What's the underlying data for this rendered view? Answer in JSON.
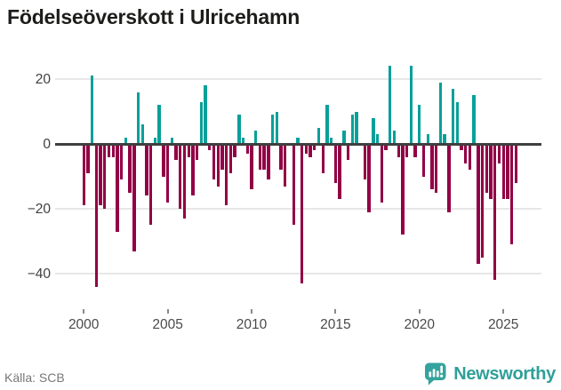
{
  "title": "Födelseöverskott i Ulricehamn",
  "source": "Källa: SCB",
  "branding": {
    "name": "Newsworthy",
    "logo_icon": "speech-bubble-bar-chart"
  },
  "colors": {
    "positive": "#07a099",
    "negative": "#920045",
    "zero_line": "#3f3f3f",
    "gridline": "#e7e7e7",
    "brand_teal": "#2f9f99"
  },
  "chart_data": {
    "type": "bar",
    "title": "Födelseöverskott i Ulricehamn",
    "xlabel": "",
    "ylabel": "",
    "frequency": "quarterly",
    "start_year": 2000,
    "end_year": 2025,
    "y_tick_labels": [
      "20",
      "0",
      "−20",
      "−40"
    ],
    "y_tick_values": [
      20,
      0,
      -20,
      -40
    ],
    "x_tick_years": [
      2000,
      2005,
      2010,
      2015,
      2020,
      2025
    ],
    "ylim": [
      -46,
      25
    ],
    "grid": true,
    "legend": "none",
    "values": [
      -19,
      -9,
      21,
      -44,
      -19,
      -20,
      -4,
      -4,
      -27,
      -11,
      2,
      -15,
      -33,
      16,
      6,
      -16,
      -25,
      2,
      12,
      -10,
      -18,
      2,
      -5,
      -20,
      -23,
      -4,
      -16,
      -5,
      13,
      18,
      -2,
      -11,
      -13,
      -8,
      -19,
      -9,
      -4,
      9,
      2,
      -3,
      -14,
      4,
      -8,
      -8,
      -11,
      9,
      10,
      -8,
      -13,
      0,
      -25,
      2,
      -43,
      -3,
      -4,
      -2,
      5,
      -9,
      12,
      2,
      -12,
      -17,
      4,
      -5,
      9,
      10,
      0,
      -11,
      -21,
      8,
      3,
      -18,
      -2,
      24,
      4,
      -4,
      -28,
      -4,
      24,
      -4,
      12,
      -10,
      3,
      -14,
      -15,
      19,
      3,
      -21,
      17,
      13,
      -2,
      -6,
      -8,
      15,
      -37,
      -35,
      -15,
      -17,
      -42,
      -6,
      -17,
      -17,
      -31,
      -12
    ]
  }
}
